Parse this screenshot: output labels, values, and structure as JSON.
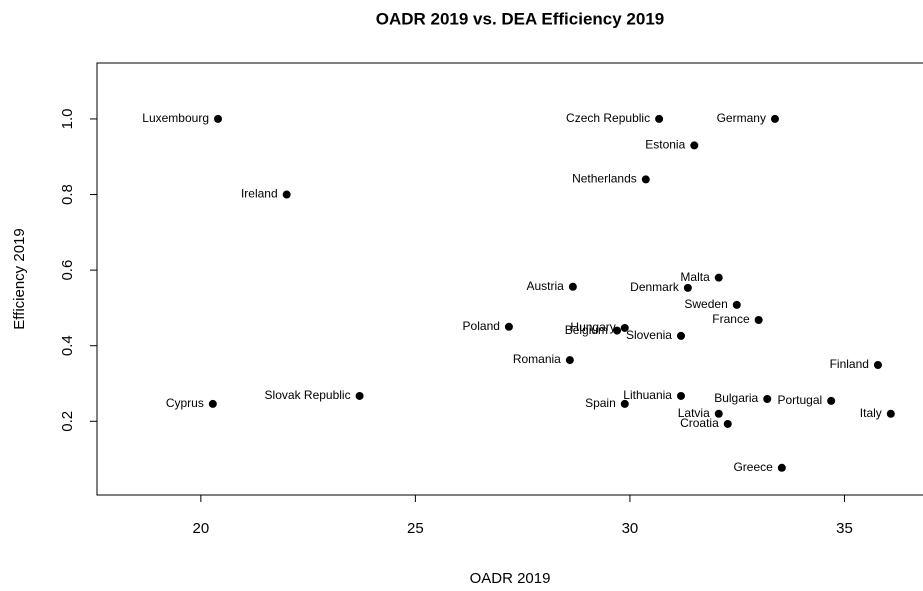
{
  "chart_data": {
    "type": "scatter",
    "title": "OADR 2019 vs. DEA Efficiency 2019",
    "x_label": "OADR 2019",
    "y_label": "Efficiency 2019",
    "labels": [
      "Luxembourg",
      "Ireland",
      "Czech Republic",
      "Germany",
      "Estonia",
      "Netherlands",
      "Malta",
      "Denmark",
      "Sweden",
      "France",
      "Austria",
      "Poland",
      "Hungary",
      "Belgium",
      "Slovenia",
      "Romania",
      "Finland",
      "Cyprus",
      "Slovak Republic",
      "Lithuania",
      "Spain",
      "Bulgaria",
      "Portugal",
      "Italy",
      "Latvia",
      "Croatia",
      "Greece"
    ],
    "x": [
      20.4,
      22.0,
      30.68,
      33.38,
      31.5,
      30.37,
      32.07,
      31.35,
      32.49,
      33.0,
      28.67,
      27.18,
      29.88,
      29.7,
      31.19,
      28.6,
      35.78,
      20.28,
      23.7,
      31.19,
      29.88,
      33.2,
      34.69,
      36.08,
      32.07,
      32.28,
      33.54
    ],
    "values": [
      1.0,
      0.8,
      1.0,
      1.0,
      0.93,
      0.84,
      0.58,
      0.553,
      0.508,
      0.468,
      0.556,
      0.45,
      0.447,
      0.44,
      0.426,
      0.362,
      0.349,
      0.246,
      0.267,
      0.267,
      0.246,
      0.259,
      0.254,
      0.22,
      0.22,
      0.193,
      0.077
    ],
    "color": "#000000",
    "xlim": [
      17.58,
      36.83
    ],
    "ylim": [
      0.005,
      1.148
    ],
    "xticks": [
      20,
      25,
      30,
      35
    ],
    "yticks": [
      0.2,
      0.4,
      0.6,
      0.8,
      {
        "value": 1,
        "label": "1.0"
      }
    ]
  }
}
